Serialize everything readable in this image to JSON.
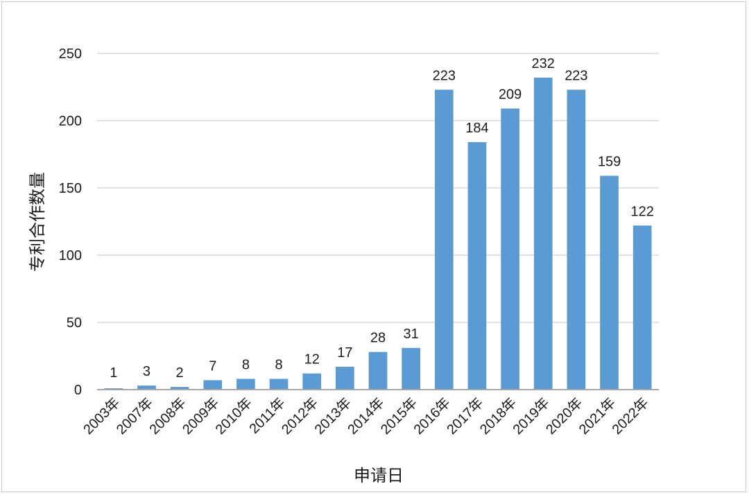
{
  "chart_data": {
    "type": "bar",
    "title": "",
    "xlabel": "申请日",
    "ylabel": "专利合作数量",
    "ylim": [
      0,
      250
    ],
    "yticks": [
      0,
      50,
      100,
      150,
      200,
      250
    ],
    "grid": true,
    "legend": "none",
    "bar_color": "#5b9bd5",
    "categories": [
      "2003年",
      "2007年",
      "2008年",
      "2009年",
      "2010年",
      "2011年",
      "2012年",
      "2013年",
      "2014年",
      "2015年",
      "2016年",
      "2017年",
      "2018年",
      "2019年",
      "2020年",
      "2021年",
      "2022年"
    ],
    "values": [
      1,
      3,
      2,
      7,
      8,
      8,
      12,
      17,
      28,
      31,
      223,
      184,
      209,
      232,
      223,
      159,
      122
    ]
  }
}
